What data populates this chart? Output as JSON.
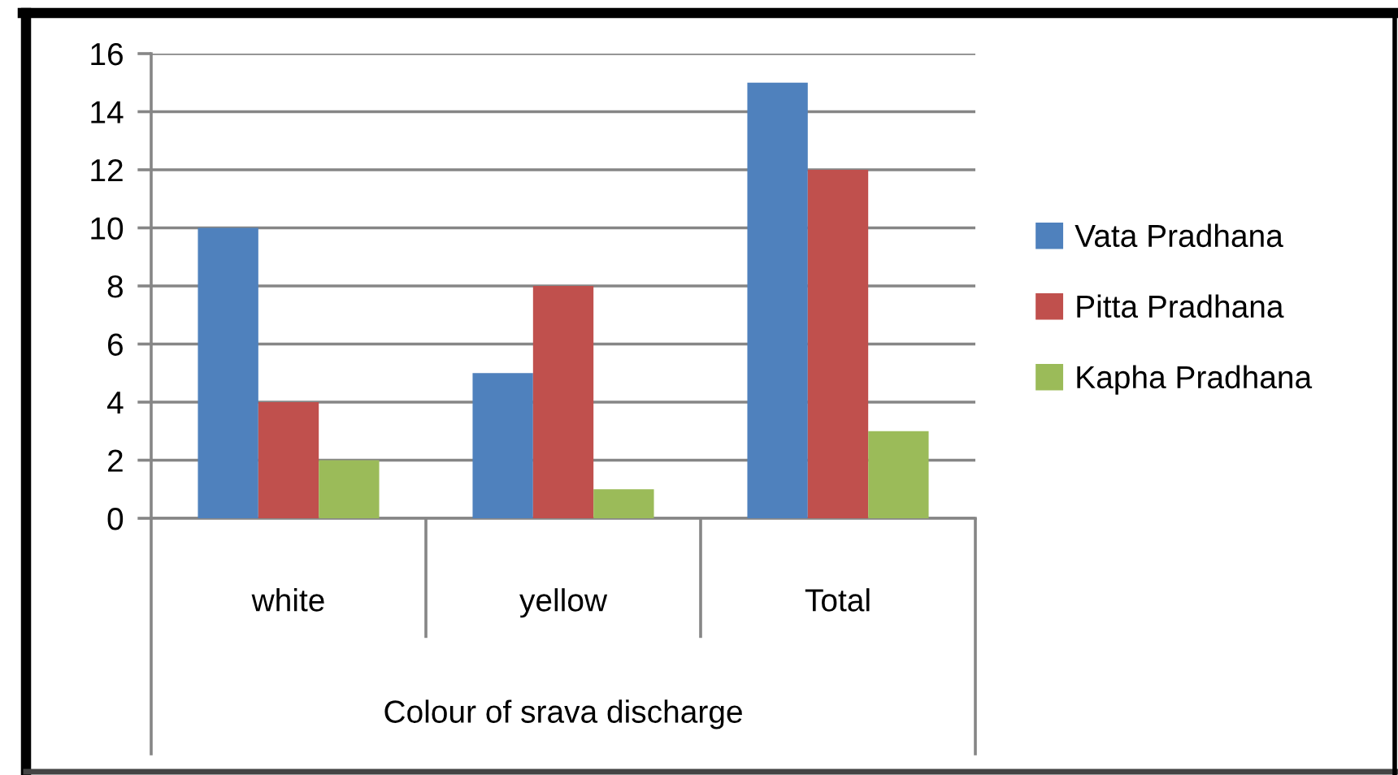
{
  "chart_data": {
    "type": "bar",
    "categories": [
      "white",
      "yellow",
      "Total"
    ],
    "xlabel": "Colour of srava discharge",
    "series": [
      {
        "name": "Vata Pradhana",
        "color": "#4f81bd",
        "values": [
          10,
          5,
          15
        ]
      },
      {
        "name": "Pitta Pradhana",
        "color": "#c0504d",
        "values": [
          4,
          8,
          12
        ]
      },
      {
        "name": "Kapha Pradhana",
        "color": "#9bbb59",
        "values": [
          2,
          1,
          3
        ]
      }
    ],
    "ylim": [
      0,
      16
    ],
    "yticks": [
      0,
      2,
      4,
      6,
      8,
      10,
      12,
      14,
      16
    ],
    "grid": "y",
    "legend": "right"
  }
}
